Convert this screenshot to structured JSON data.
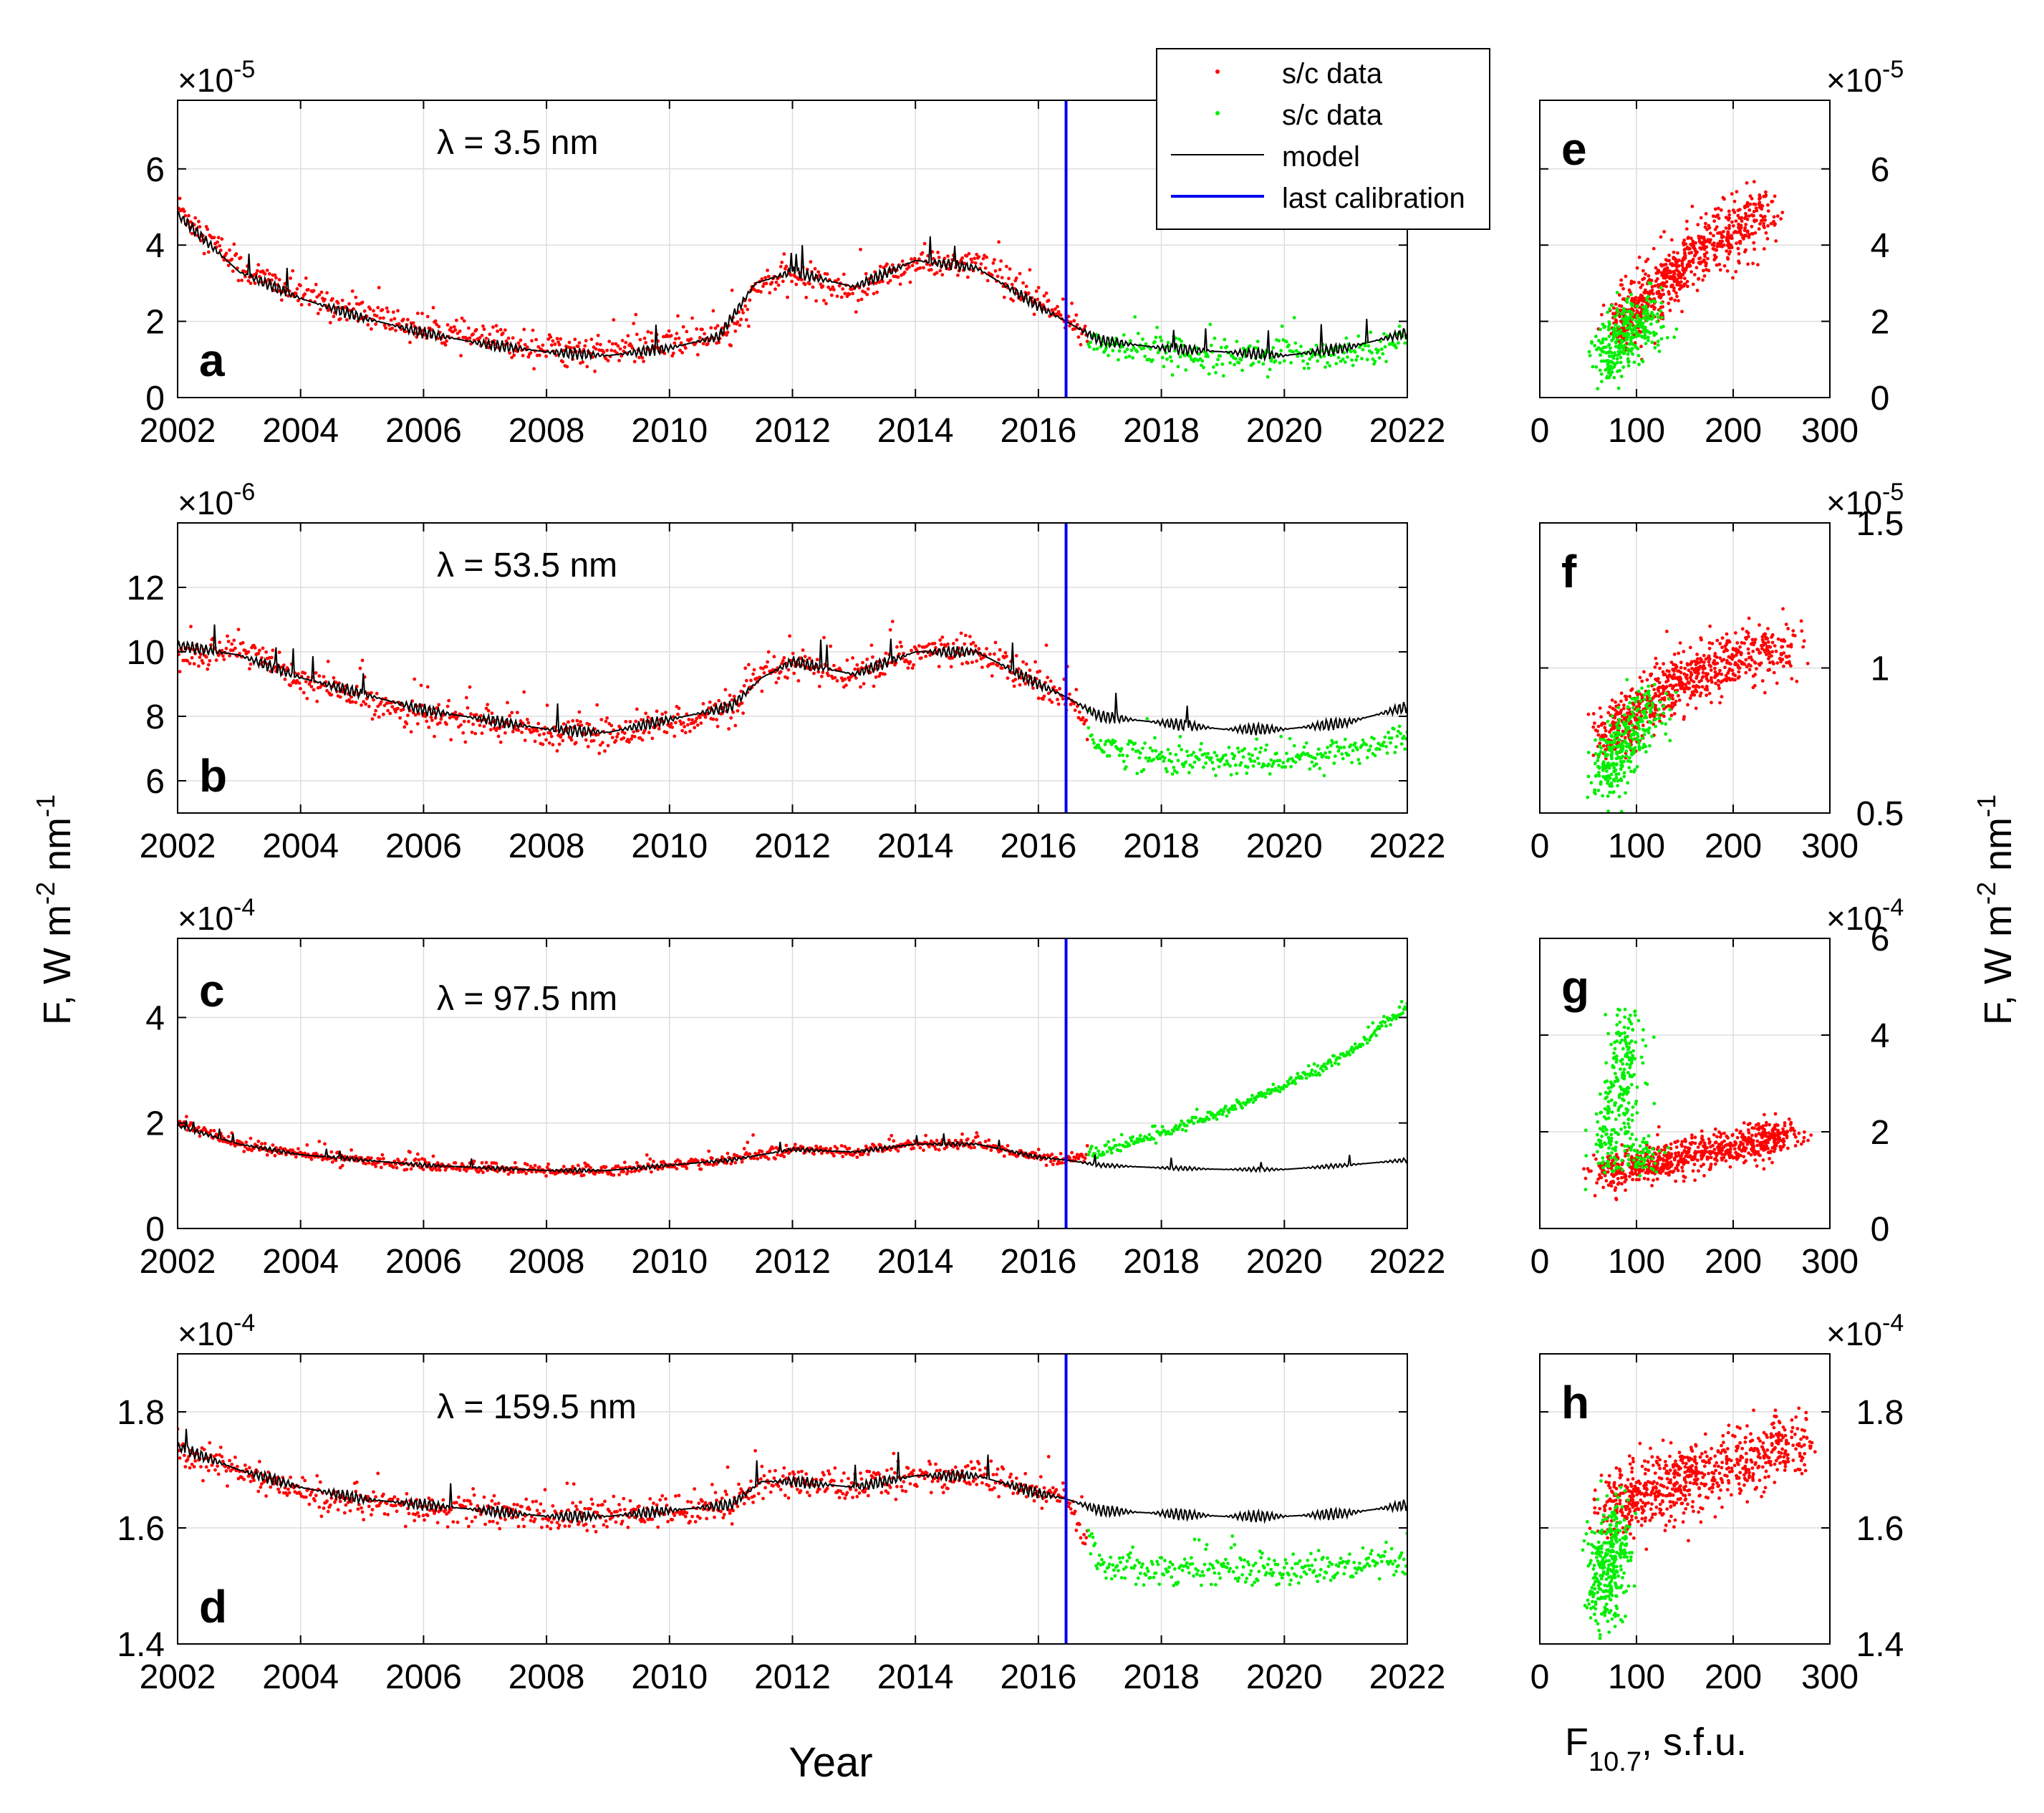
{
  "figure": {
    "xlabel_time": "Year",
    "xlabel_flux_main": "F",
    "xlabel_flux_sub": "10.7",
    "xlabel_flux_tail": ",  s.f.u.",
    "ylabel": "F,  W m",
    "ylabel_sup1": "-2",
    "ylabel_mid": " nm",
    "ylabel_sup2": "-1"
  },
  "legend": [
    {
      "label": "s/c data",
      "color": "#ff0000",
      "kind": "dot"
    },
    {
      "label": "s/c data",
      "color": "#00ee00",
      "kind": "dot"
    },
    {
      "label": "model",
      "color": "#000000",
      "kind": "line"
    },
    {
      "label": "last calibration",
      "color": "#0000ee",
      "kind": "line"
    }
  ],
  "colors": {
    "sc_data_red": "#ff0000",
    "sc_data_green": "#00ee00",
    "model": "#000000",
    "calibration": "#0000ee",
    "grid": "#dddddd"
  },
  "chart_data": [
    {
      "id": "a",
      "type": "scatter",
      "panel_label": "a",
      "annotation": "λ = 3.5 nm",
      "exponent_label": "×10",
      "exponent": "-5",
      "xlim": [
        2002,
        2022
      ],
      "ylim": [
        0,
        7.8
      ],
      "xticks": [
        2002,
        2004,
        2006,
        2008,
        2010,
        2012,
        2014,
        2016,
        2018,
        2020,
        2022
      ],
      "yticks": [
        0,
        2,
        4,
        6
      ],
      "calibration_x": 2016.45,
      "model": {
        "x": [
          2002,
          2003,
          2004,
          2005,
          2006,
          2007,
          2008,
          2009,
          2010,
          2010.8,
          2011.4,
          2012,
          2013,
          2014,
          2015,
          2016,
          2016.45,
          2017,
          2018,
          2019,
          2020,
          2021,
          2022
        ],
        "y": [
          4.8,
          3.3,
          2.6,
          2.1,
          1.7,
          1.4,
          1.2,
          1.1,
          1.3,
          1.6,
          3.0,
          3.3,
          2.9,
          3.6,
          3.4,
          2.4,
          2.0,
          1.5,
          1.3,
          1.2,
          1.1,
          1.3,
          1.7
        ]
      },
      "scatter": {
        "x": [
          2002,
          2003,
          2004,
          2005,
          2006,
          2007,
          2008,
          2009,
          2010,
          2011,
          2011.5,
          2012,
          2013,
          2014,
          2015,
          2016,
          2016.45,
          2017,
          2018,
          2019,
          2020,
          2021,
          2022
        ],
        "y": [
          5.0,
          3.4,
          2.7,
          2.2,
          1.8,
          1.5,
          1.3,
          1.2,
          1.4,
          1.7,
          3.0,
          3.2,
          2.8,
          3.5,
          3.5,
          2.5,
          2.0,
          1.4,
          1.2,
          1.1,
          1.1,
          1.2,
          1.5
        ]
      },
      "spread": 0.45
    },
    {
      "id": "b",
      "type": "scatter",
      "panel_label": "b",
      "annotation": "λ = 53.5 nm",
      "exponent_label": "×10",
      "exponent": "-6",
      "xlim": [
        2002,
        2022
      ],
      "ylim": [
        5,
        14
      ],
      "xticks": [
        2002,
        2004,
        2006,
        2008,
        2010,
        2012,
        2014,
        2016,
        2018,
        2020,
        2022
      ],
      "yticks": [
        6,
        8,
        10,
        12
      ],
      "calibration_x": 2016.45,
      "model": {
        "x": [
          2002,
          2003,
          2004,
          2005,
          2006,
          2007,
          2008,
          2009,
          2010,
          2011,
          2011.5,
          2012,
          2013,
          2014,
          2015,
          2016,
          2016.45,
          2017,
          2018,
          2019,
          2020,
          2021,
          2022
        ],
        "y": [
          10.2,
          9.9,
          9.2,
          8.7,
          8.2,
          7.9,
          7.6,
          7.5,
          7.9,
          8.3,
          9.2,
          9.7,
          9.3,
          10.0,
          10.0,
          9.0,
          8.6,
          8.0,
          7.8,
          7.6,
          7.6,
          7.8,
          8.3
        ]
      },
      "scatter": {
        "x": [
          2002,
          2003,
          2004,
          2005,
          2006,
          2007,
          2008,
          2009,
          2010,
          2011,
          2011.5,
          2012,
          2013,
          2014,
          2015,
          2016,
          2016.45,
          2017,
          2018,
          2019,
          2020,
          2021,
          2022
        ],
        "y": [
          9.8,
          10.2,
          9.1,
          8.6,
          8.0,
          7.8,
          7.5,
          7.4,
          7.8,
          8.2,
          9.2,
          9.6,
          9.2,
          10.0,
          10.0,
          9.0,
          8.6,
          7.1,
          6.7,
          6.6,
          6.7,
          6.9,
          7.4
        ]
      },
      "spread": 0.55
    },
    {
      "id": "c",
      "type": "scatter",
      "panel_label": "c",
      "annotation": "λ = 97.5 nm",
      "exponent_label": "×10",
      "exponent": "-4",
      "xlim": [
        2002,
        2022
      ],
      "ylim": [
        0,
        5.5
      ],
      "xticks": [
        2002,
        2004,
        2006,
        2008,
        2010,
        2012,
        2014,
        2016,
        2018,
        2020,
        2022
      ],
      "yticks": [
        0,
        2,
        4
      ],
      "calibration_x": 2016.45,
      "model": {
        "x": [
          2002,
          2003,
          2004,
          2005,
          2006,
          2007,
          2008,
          2009,
          2010,
          2011,
          2012,
          2013,
          2014,
          2015,
          2016,
          2016.45,
          2017,
          2018,
          2019,
          2020,
          2021,
          2022
        ],
        "y": [
          1.95,
          1.6,
          1.4,
          1.3,
          1.2,
          1.15,
          1.1,
          1.1,
          1.2,
          1.3,
          1.5,
          1.45,
          1.6,
          1.6,
          1.35,
          1.3,
          1.2,
          1.15,
          1.12,
          1.12,
          1.2,
          1.3
        ]
      },
      "scatter": {
        "x": [
          2002,
          2003,
          2004,
          2005,
          2006,
          2007,
          2008,
          2009,
          2010,
          2011,
          2012,
          2013,
          2014,
          2015,
          2016,
          2016.45,
          2017,
          2018,
          2019,
          2020,
          2021,
          2022
        ],
        "y": [
          2.0,
          1.6,
          1.4,
          1.3,
          1.2,
          1.15,
          1.1,
          1.1,
          1.2,
          1.3,
          1.5,
          1.45,
          1.6,
          1.6,
          1.35,
          1.3,
          1.45,
          1.8,
          2.2,
          2.7,
          3.3,
          4.2
        ]
      },
      "spread": 0.12
    },
    {
      "id": "d",
      "type": "scatter",
      "panel_label": "d",
      "annotation": "λ = 159.5 nm",
      "exponent_label": "×10",
      "exponent": "-4",
      "xlim": [
        2002,
        2022
      ],
      "ylim": [
        1.4,
        1.9
      ],
      "xticks": [
        2002,
        2004,
        2006,
        2008,
        2010,
        2012,
        2014,
        2016,
        2018,
        2020,
        2022
      ],
      "yticks": [
        1.4,
        1.6,
        1.8
      ],
      "ytick_labels": [
        "1.4",
        "1.6",
        "1.8"
      ],
      "calibration_x": 2016.45,
      "model": {
        "x": [
          2002,
          2003,
          2004,
          2005,
          2006,
          2007,
          2008,
          2009,
          2010,
          2011,
          2011.5,
          2012,
          2013,
          2014,
          2015,
          2016,
          2016.45,
          2017,
          2018,
          2019,
          2020,
          2021,
          2022
        ],
        "y": [
          1.74,
          1.7,
          1.67,
          1.65,
          1.64,
          1.63,
          1.62,
          1.62,
          1.63,
          1.64,
          1.68,
          1.68,
          1.67,
          1.69,
          1.69,
          1.66,
          1.65,
          1.63,
          1.625,
          1.62,
          1.62,
          1.625,
          1.64
        ]
      },
      "scatter": {
        "x": [
          2002,
          2003,
          2004,
          2005,
          2006,
          2007,
          2008,
          2009,
          2010,
          2011,
          2011.5,
          2012,
          2013,
          2014,
          2015,
          2016,
          2016.45,
          2017,
          2018,
          2019,
          2020,
          2021,
          2022
        ],
        "y": [
          1.73,
          1.7,
          1.66,
          1.64,
          1.63,
          1.63,
          1.62,
          1.62,
          1.63,
          1.64,
          1.68,
          1.68,
          1.67,
          1.69,
          1.69,
          1.66,
          1.65,
          1.54,
          1.53,
          1.53,
          1.53,
          1.53,
          1.54
        ]
      },
      "spread": 0.03
    },
    {
      "id": "e",
      "type": "scatter",
      "panel_label": "e",
      "exponent_label": "×10",
      "exponent": "-5",
      "xlim": [
        0,
        300
      ],
      "ylim": [
        0,
        7.8
      ],
      "xticks": [
        0,
        100,
        200,
        300
      ],
      "yticks": [
        0,
        2,
        4,
        6
      ],
      "red_cloud": {
        "x": [
          80,
          100,
          130,
          160,
          200,
          240
        ],
        "y": [
          1.8,
          2.4,
          3.1,
          3.7,
          4.3,
          5.0
        ]
      },
      "green_cloud": {
        "x": [
          68,
          80,
          95,
          120
        ],
        "y": [
          1.0,
          1.4,
          1.8,
          2.2
        ]
      },
      "spread": 0.4
    },
    {
      "id": "f",
      "type": "scatter",
      "panel_label": "f",
      "exponent_label": "×10",
      "exponent": "-5",
      "xlim": [
        0,
        300
      ],
      "ylim": [
        0.5,
        1.5
      ],
      "xticks": [
        0,
        100,
        200,
        300
      ],
      "yticks": [
        0.5,
        1,
        1.5
      ],
      "red_cloud": {
        "x": [
          70,
          90,
          120,
          150,
          180,
          220,
          260
        ],
        "y": [
          0.75,
          0.82,
          0.9,
          0.96,
          1.0,
          1.05,
          1.08
        ]
      },
      "green_cloud": {
        "x": [
          65,
          75,
          85,
          100,
          120
        ],
        "y": [
          0.6,
          0.68,
          0.74,
          0.8,
          0.86
        ]
      },
      "spread": 0.05
    },
    {
      "id": "g",
      "type": "scatter",
      "panel_label": "g",
      "exponent_label": "×10",
      "exponent": "-4",
      "xlim": [
        0,
        300
      ],
      "ylim": [
        0,
        6
      ],
      "xticks": [
        0,
        100,
        200,
        300
      ],
      "yticks": [
        0,
        2,
        4,
        6
      ],
      "red_cloud": {
        "x": [
          65,
          100,
          140,
          180,
          220,
          260
        ],
        "y": [
          1.1,
          1.3,
          1.45,
          1.6,
          1.8,
          1.95
        ]
      },
      "green_cloud": {
        "x": [
          70,
          75,
          80,
          85,
          90,
          100,
          120
        ],
        "y": [
          1.3,
          2.0,
          2.8,
          3.6,
          4.3,
          1.4,
          1.6
        ]
      },
      "spread": 0.18
    },
    {
      "id": "h",
      "type": "scatter",
      "panel_label": "h",
      "exponent_label": "×10",
      "exponent": "-4",
      "xlim": [
        0,
        300
      ],
      "ylim": [
        1.4,
        1.9
      ],
      "xticks": [
        0,
        100,
        200,
        300
      ],
      "yticks": [
        1.4,
        1.6,
        1.8
      ],
      "ytick_labels": [
        "1.4",
        "1.6",
        "1.8"
      ],
      "red_cloud": {
        "x": [
          70,
          100,
          130,
          160,
          200,
          240,
          270
        ],
        "y": [
          1.63,
          1.65,
          1.67,
          1.69,
          1.71,
          1.73,
          1.75
        ]
      },
      "green_cloud": {
        "x": [
          66,
          70,
          74,
          78
        ],
        "y": [
          1.45,
          1.52,
          1.56,
          1.6
        ]
      },
      "spread": 0.03
    }
  ]
}
